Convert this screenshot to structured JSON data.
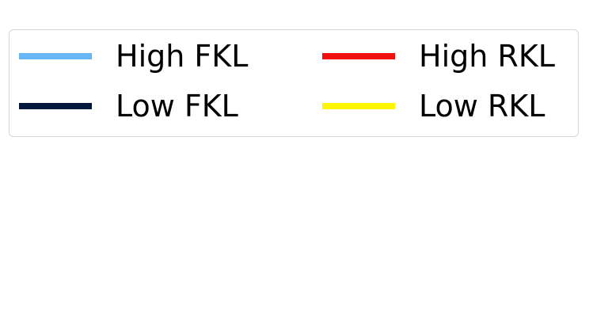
{
  "chart_data": {
    "type": "line",
    "legend_only": true,
    "legend": {
      "placement": "top-left",
      "columns": 2,
      "entries": [
        {
          "label": "High FKL",
          "color": "#67b7f7"
        },
        {
          "label": "Low FKL",
          "color": "#03183a"
        },
        {
          "label": "High RKL",
          "color": "#f20f0f"
        },
        {
          "label": "Low RKL",
          "color": "#fcf605"
        }
      ]
    }
  }
}
